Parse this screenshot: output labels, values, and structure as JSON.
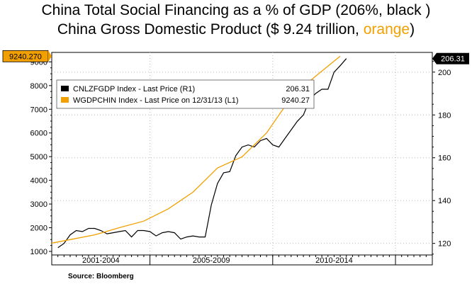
{
  "title_line1": "China Total Social Financing as a % of GDP (206%, black )",
  "title_line2_prefix": "China Gross Domestic Product ($ 9.24 trillion, ",
  "title_line2_highlight": "orange",
  "title_line2_suffix": ")",
  "source": "Source:  Bloomberg",
  "colors": {
    "background": "#000000",
    "tsf": "#000000",
    "gdp": "#f2a000",
    "grid": "#bbbbbb"
  },
  "chart_data": {
    "type": "line",
    "left_axis": {
      "range": [
        850,
        9400
      ],
      "ticks": [
        1000,
        2000,
        3000,
        4000,
        5000,
        6000,
        7000,
        8000,
        9000
      ],
      "last_value_tag": "9240.270"
    },
    "right_axis": {
      "range": [
        114.6,
        209.2
      ],
      "ticks": [
        120,
        140,
        160,
        180,
        200
      ],
      "last_value_tag": "206.31"
    },
    "x_axis": {
      "range": [
        2000.75,
        2016.25
      ],
      "period_labels": [
        "2001-2004",
        "2005-2009",
        "2010-2014"
      ],
      "period_boundaries": [
        2004.75,
        2009.75,
        2014.75
      ]
    },
    "legend": {
      "position": "top-left",
      "entries": [
        {
          "name": "CNLZFGDP Index - Last Price (R1)",
          "value": "206.31",
          "series": "tsf"
        },
        {
          "name": "WGDPCHIN Index - Last Price on 12/31/13 (L1)",
          "value": "9240.27",
          "series": "gdp"
        }
      ]
    },
    "series": [
      {
        "name": "CNLZFGDP Index",
        "axis": "right",
        "points": [
          [
            2001.0,
            118
          ],
          [
            2001.25,
            120
          ],
          [
            2001.5,
            124
          ],
          [
            2001.75,
            126
          ],
          [
            2002.0,
            125.5
          ],
          [
            2002.25,
            127
          ],
          [
            2002.5,
            127
          ],
          [
            2002.75,
            126
          ],
          [
            2003.0,
            124.5
          ],
          [
            2003.25,
            125
          ],
          [
            2003.5,
            125.5
          ],
          [
            2003.75,
            126
          ],
          [
            2004.0,
            123
          ],
          [
            2004.25,
            126
          ],
          [
            2004.5,
            126
          ],
          [
            2004.75,
            125.5
          ],
          [
            2005.0,
            123.5
          ],
          [
            2005.25,
            125
          ],
          [
            2005.5,
            125.5
          ],
          [
            2005.75,
            125
          ],
          [
            2006.0,
            122
          ],
          [
            2006.25,
            123
          ],
          [
            2006.5,
            123.5
          ],
          [
            2006.75,
            123
          ],
          [
            2007.0,
            123
          ],
          [
            2007.25,
            138
          ],
          [
            2007.5,
            148
          ],
          [
            2007.75,
            153
          ],
          [
            2008.0,
            153.5
          ],
          [
            2008.25,
            161
          ],
          [
            2008.5,
            165
          ],
          [
            2008.75,
            166
          ],
          [
            2009.0,
            165
          ],
          [
            2009.25,
            168
          ],
          [
            2009.5,
            169
          ],
          [
            2009.75,
            166
          ],
          [
            2010.0,
            165
          ],
          [
            2010.25,
            169
          ],
          [
            2010.5,
            173
          ],
          [
            2010.75,
            177
          ],
          [
            2011.0,
            180
          ],
          [
            2011.25,
            187
          ],
          [
            2011.5,
            190
          ],
          [
            2011.75,
            192
          ],
          [
            2012.0,
            192
          ],
          [
            2012.25,
            200
          ],
          [
            2012.5,
            203
          ],
          [
            2012.75,
            206.31
          ]
        ]
      },
      {
        "name": "WGDPCHIN Index",
        "axis": "left",
        "points": [
          [
            2000.75,
            1350
          ],
          [
            2001.5,
            1500
          ],
          [
            2002.5,
            1700
          ],
          [
            2003.5,
            2000
          ],
          [
            2004.5,
            2280
          ],
          [
            2005.5,
            2800
          ],
          [
            2006.5,
            3500
          ],
          [
            2007.5,
            4520
          ],
          [
            2008.5,
            4990
          ],
          [
            2009.5,
            6000
          ],
          [
            2010.5,
            7500
          ],
          [
            2011.5,
            8400
          ],
          [
            2012.5,
            9240.27
          ]
        ]
      }
    ]
  }
}
